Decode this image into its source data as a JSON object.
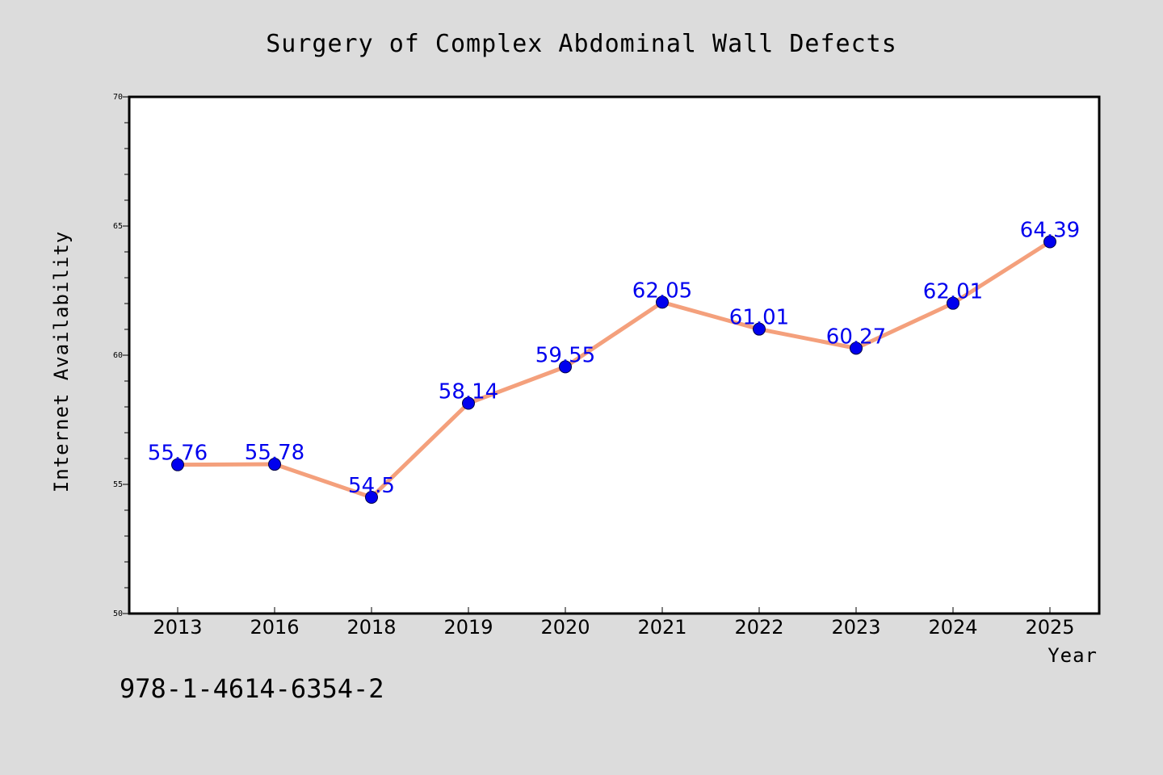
{
  "chart_data": {
    "type": "line",
    "title": "Surgery of Complex Abdominal Wall Defects",
    "xlabel": "Year",
    "ylabel": "Internet Availability",
    "categories": [
      "2013",
      "2016",
      "2018",
      "2019",
      "2020",
      "2021",
      "2022",
      "2023",
      "2024",
      "2025"
    ],
    "values": [
      55.76,
      55.78,
      54.5,
      58.14,
      59.55,
      62.05,
      61.01,
      60.27,
      62.01,
      64.39
    ],
    "data_labels": [
      "55.76",
      "55.78",
      "54.5",
      "58.14",
      "59.55",
      "62.05",
      "61.01",
      "60.27",
      "62.01",
      "64.39"
    ],
    "ylim": [
      50,
      70
    ],
    "yticks": [
      50,
      55,
      60,
      65,
      70
    ],
    "grid": false,
    "legend": "none",
    "colors": {
      "line": "#f4a07c",
      "marker": "#0000ee",
      "label": "#0000ee",
      "background": "#dcdcdc",
      "plot_background": "#ffffff"
    }
  },
  "annotation": {
    "isbn": "978-1-4614-6354-2"
  }
}
